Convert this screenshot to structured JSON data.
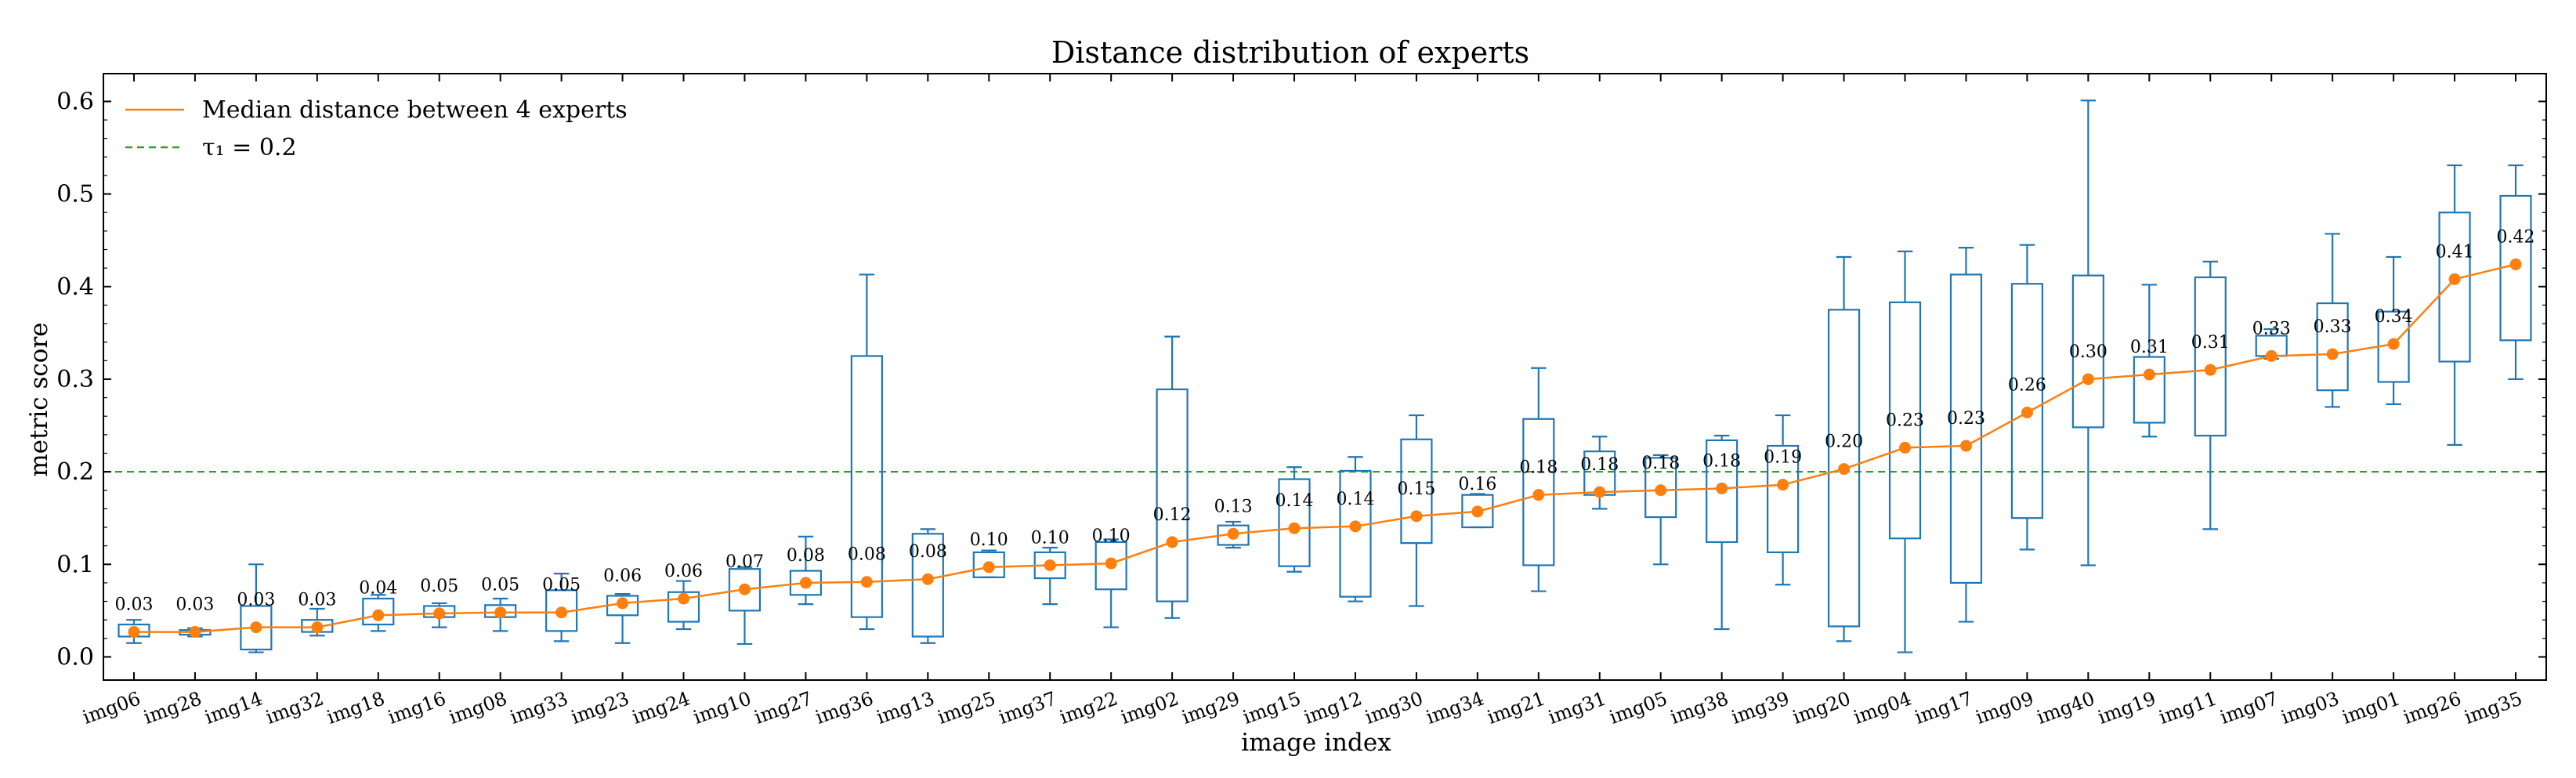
{
  "chart_data": {
    "type": "box",
    "title": "Distance distribution of experts",
    "xlabel": "image index",
    "ylabel": "metric score",
    "ylim": [
      -0.025,
      0.63
    ],
    "yticks": [
      0.0,
      0.1,
      0.2,
      0.3,
      0.4,
      0.5,
      0.6
    ],
    "ytick_labels": [
      "0.0",
      "0.1",
      "0.2",
      "0.3",
      "0.4",
      "0.5",
      "0.6"
    ],
    "legend": {
      "position": "top-left",
      "entries": [
        {
          "label": "Median distance between 4 experts",
          "style": "orange-line"
        },
        {
          "label": "τ₁ = 0.2",
          "style": "green-dashed"
        }
      ]
    },
    "threshold": {
      "value": 0.2,
      "label": "τ₁ = 0.2"
    },
    "colors": {
      "box": "#1f77b4",
      "median_line": "#ff7f0e",
      "median_marker": "#ff7f0e",
      "threshold": "#2ca02c",
      "axis": "#000000"
    },
    "categories": [
      "img06",
      "img28",
      "img14",
      "img32",
      "img18",
      "img16",
      "img08",
      "img33",
      "img23",
      "img24",
      "img10",
      "img27",
      "img36",
      "img13",
      "img25",
      "img37",
      "img22",
      "img02",
      "img29",
      "img15",
      "img12",
      "img30",
      "img34",
      "img21",
      "img31",
      "img05",
      "img38",
      "img39",
      "img20",
      "img04",
      "img17",
      "img09",
      "img40",
      "img19",
      "img11",
      "img07",
      "img03",
      "img01",
      "img26",
      "img35"
    ],
    "boxes": [
      {
        "whislo": 0.015,
        "q1": 0.022,
        "med": 0.027,
        "q3": 0.035,
        "whishi": 0.04
      },
      {
        "whislo": 0.022,
        "q1": 0.024,
        "med": 0.027,
        "q3": 0.029,
        "whishi": 0.031
      },
      {
        "whislo": 0.005,
        "q1": 0.008,
        "med": 0.032,
        "q3": 0.055,
        "whishi": 0.1
      },
      {
        "whislo": 0.023,
        "q1": 0.027,
        "med": 0.032,
        "q3": 0.04,
        "whishi": 0.052
      },
      {
        "whislo": 0.028,
        "q1": 0.035,
        "med": 0.045,
        "q3": 0.063,
        "whishi": 0.067
      },
      {
        "whislo": 0.032,
        "q1": 0.043,
        "med": 0.047,
        "q3": 0.055,
        "whishi": 0.058
      },
      {
        "whislo": 0.028,
        "q1": 0.043,
        "med": 0.048,
        "q3": 0.056,
        "whishi": 0.063
      },
      {
        "whislo": 0.017,
        "q1": 0.028,
        "med": 0.048,
        "q3": 0.072,
        "whishi": 0.09
      },
      {
        "whislo": 0.015,
        "q1": 0.045,
        "med": 0.058,
        "q3": 0.066,
        "whishi": 0.068
      },
      {
        "whislo": 0.03,
        "q1": 0.038,
        "med": 0.063,
        "q3": 0.07,
        "whishi": 0.082
      },
      {
        "whislo": 0.014,
        "q1": 0.05,
        "med": 0.073,
        "q3": 0.095,
        "whishi": 0.097
      },
      {
        "whislo": 0.057,
        "q1": 0.067,
        "med": 0.08,
        "q3": 0.093,
        "whishi": 0.13
      },
      {
        "whislo": 0.03,
        "q1": 0.043,
        "med": 0.081,
        "q3": 0.325,
        "whishi": 0.413
      },
      {
        "whislo": 0.015,
        "q1": 0.022,
        "med": 0.084,
        "q3": 0.133,
        "whishi": 0.138
      },
      {
        "whislo": 0.086,
        "q1": 0.086,
        "med": 0.097,
        "q3": 0.113,
        "whishi": 0.115
      },
      {
        "whislo": 0.057,
        "q1": 0.085,
        "med": 0.099,
        "q3": 0.113,
        "whishi": 0.118
      },
      {
        "whislo": 0.032,
        "q1": 0.073,
        "med": 0.101,
        "q3": 0.124,
        "whishi": 0.127
      },
      {
        "whislo": 0.042,
        "q1": 0.06,
        "med": 0.124,
        "q3": 0.289,
        "whishi": 0.346
      },
      {
        "whislo": 0.118,
        "q1": 0.121,
        "med": 0.133,
        "q3": 0.142,
        "whishi": 0.146
      },
      {
        "whislo": 0.092,
        "q1": 0.098,
        "med": 0.139,
        "q3": 0.192,
        "whishi": 0.205
      },
      {
        "whislo": 0.06,
        "q1": 0.065,
        "med": 0.141,
        "q3": 0.201,
        "whishi": 0.216
      },
      {
        "whislo": 0.055,
        "q1": 0.123,
        "med": 0.152,
        "q3": 0.235,
        "whishi": 0.261
      },
      {
        "whislo": 0.14,
        "q1": 0.14,
        "med": 0.157,
        "q3": 0.175,
        "whishi": 0.176
      },
      {
        "whislo": 0.071,
        "q1": 0.099,
        "med": 0.175,
        "q3": 0.257,
        "whishi": 0.312
      },
      {
        "whislo": 0.16,
        "q1": 0.175,
        "med": 0.178,
        "q3": 0.222,
        "whishi": 0.238
      },
      {
        "whislo": 0.1,
        "q1": 0.151,
        "med": 0.18,
        "q3": 0.215,
        "whishi": 0.218
      },
      {
        "whislo": 0.03,
        "q1": 0.124,
        "med": 0.182,
        "q3": 0.234,
        "whishi": 0.239
      },
      {
        "whislo": 0.078,
        "q1": 0.113,
        "med": 0.186,
        "q3": 0.228,
        "whishi": 0.261
      },
      {
        "whislo": 0.017,
        "q1": 0.033,
        "med": 0.203,
        "q3": 0.375,
        "whishi": 0.432
      },
      {
        "whislo": 0.005,
        "q1": 0.128,
        "med": 0.226,
        "q3": 0.383,
        "whishi": 0.438
      },
      {
        "whislo": 0.038,
        "q1": 0.08,
        "med": 0.228,
        "q3": 0.413,
        "whishi": 0.442
      },
      {
        "whislo": 0.116,
        "q1": 0.15,
        "med": 0.264,
        "q3": 0.403,
        "whishi": 0.445
      },
      {
        "whislo": 0.099,
        "q1": 0.248,
        "med": 0.3,
        "q3": 0.412,
        "whishi": 0.601
      },
      {
        "whislo": 0.238,
        "q1": 0.253,
        "med": 0.305,
        "q3": 0.324,
        "whishi": 0.402
      },
      {
        "whislo": 0.138,
        "q1": 0.239,
        "med": 0.31,
        "q3": 0.41,
        "whishi": 0.427
      },
      {
        "whislo": 0.322,
        "q1": 0.325,
        "med": 0.325,
        "q3": 0.347,
        "whishi": 0.354
      },
      {
        "whislo": 0.27,
        "q1": 0.288,
        "med": 0.327,
        "q3": 0.382,
        "whishi": 0.457
      },
      {
        "whislo": 0.273,
        "q1": 0.297,
        "med": 0.338,
        "q3": 0.373,
        "whishi": 0.432
      },
      {
        "whislo": 0.229,
        "q1": 0.319,
        "med": 0.408,
        "q3": 0.48,
        "whishi": 0.531
      },
      {
        "whislo": 0.3,
        "q1": 0.342,
        "med": 0.424,
        "q3": 0.498,
        "whishi": 0.531
      }
    ],
    "median_labels": [
      "0.03",
      "0.03",
      "0.03",
      "0.03",
      "0.04",
      "0.05",
      "0.05",
      "0.05",
      "0.06",
      "0.06",
      "0.07",
      "0.08",
      "0.08",
      "0.08",
      "0.10",
      "0.10",
      "0.10",
      "0.12",
      "0.13",
      "0.14",
      "0.14",
      "0.15",
      "0.16",
      "0.18",
      "0.18",
      "0.18",
      "0.18",
      "0.19",
      "0.20",
      "0.23",
      "0.23",
      "0.26",
      "0.30",
      "0.31",
      "0.31",
      "0.33",
      "0.33",
      "0.34",
      "0.41",
      "0.42"
    ]
  }
}
